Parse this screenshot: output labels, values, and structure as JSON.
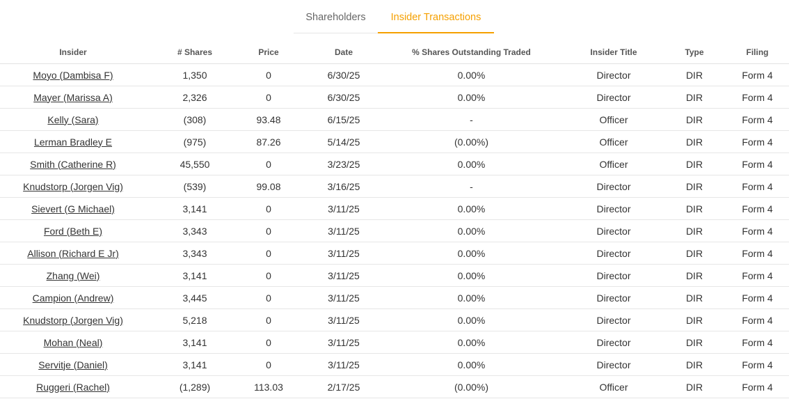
{
  "tabs": [
    {
      "label": "Shareholders",
      "active": false
    },
    {
      "label": "Insider Transactions",
      "active": true
    }
  ],
  "accent_color": "#f5a000",
  "negative_color": "#e0533f",
  "columns": [
    "Insider",
    "# Shares",
    "Price",
    "Date",
    "% Shares Outstanding Traded",
    "Insider Title",
    "Type",
    "Filing"
  ],
  "rows": [
    {
      "insider": "Moyo (Dambisa F)",
      "shares": "1,350",
      "price": "0",
      "date": "6/30/25",
      "pct": "0.00%",
      "title": "Director",
      "type": "DIR",
      "filing": "Form 4"
    },
    {
      "insider": "Mayer (Marissa A)",
      "shares": "2,326",
      "price": "0",
      "date": "6/30/25",
      "pct": "0.00%",
      "title": "Director",
      "type": "DIR",
      "filing": "Form 4"
    },
    {
      "insider": "Kelly (Sara)",
      "shares": "(308)",
      "price": "93.48",
      "date": "6/15/25",
      "pct": "-",
      "title": "Officer",
      "type": "DIR",
      "filing": "Form 4"
    },
    {
      "insider": "Lerman Bradley E",
      "shares": "(975)",
      "price": "87.26",
      "date": "5/14/25",
      "pct": "(0.00%)",
      "title": "Officer",
      "type": "DIR",
      "filing": "Form 4"
    },
    {
      "insider": "Smith (Catherine R)",
      "shares": "45,550",
      "price": "0",
      "date": "3/23/25",
      "pct": "0.00%",
      "title": "Officer",
      "type": "DIR",
      "filing": "Form 4"
    },
    {
      "insider": "Knudstorp (Jorgen Vig)",
      "shares": "(539)",
      "price": "99.08",
      "date": "3/16/25",
      "pct": "-",
      "title": "Director",
      "type": "DIR",
      "filing": "Form 4"
    },
    {
      "insider": "Sievert (G Michael)",
      "shares": "3,141",
      "price": "0",
      "date": "3/11/25",
      "pct": "0.00%",
      "title": "Director",
      "type": "DIR",
      "filing": "Form 4"
    },
    {
      "insider": "Ford (Beth E)",
      "shares": "3,343",
      "price": "0",
      "date": "3/11/25",
      "pct": "0.00%",
      "title": "Director",
      "type": "DIR",
      "filing": "Form 4"
    },
    {
      "insider": "Allison (Richard E Jr)",
      "shares": "3,343",
      "price": "0",
      "date": "3/11/25",
      "pct": "0.00%",
      "title": "Director",
      "type": "DIR",
      "filing": "Form 4"
    },
    {
      "insider": "Zhang (Wei)",
      "shares": "3,141",
      "price": "0",
      "date": "3/11/25",
      "pct": "0.00%",
      "title": "Director",
      "type": "DIR",
      "filing": "Form 4"
    },
    {
      "insider": "Campion (Andrew)",
      "shares": "3,445",
      "price": "0",
      "date": "3/11/25",
      "pct": "0.00%",
      "title": "Director",
      "type": "DIR",
      "filing": "Form 4"
    },
    {
      "insider": "Knudstorp (Jorgen Vig)",
      "shares": "5,218",
      "price": "0",
      "date": "3/11/25",
      "pct": "0.00%",
      "title": "Director",
      "type": "DIR",
      "filing": "Form 4"
    },
    {
      "insider": "Mohan (Neal)",
      "shares": "3,141",
      "price": "0",
      "date": "3/11/25",
      "pct": "0.00%",
      "title": "Director",
      "type": "DIR",
      "filing": "Form 4"
    },
    {
      "insider": "Servitje (Daniel)",
      "shares": "3,141",
      "price": "0",
      "date": "3/11/25",
      "pct": "0.00%",
      "title": "Director",
      "type": "DIR",
      "filing": "Form 4"
    },
    {
      "insider": "Ruggeri (Rachel)",
      "shares": "(1,289)",
      "price": "113.03",
      "date": "2/17/25",
      "pct": "(0.00%)",
      "title": "Officer",
      "type": "DIR",
      "filing": "Form 4"
    }
  ]
}
